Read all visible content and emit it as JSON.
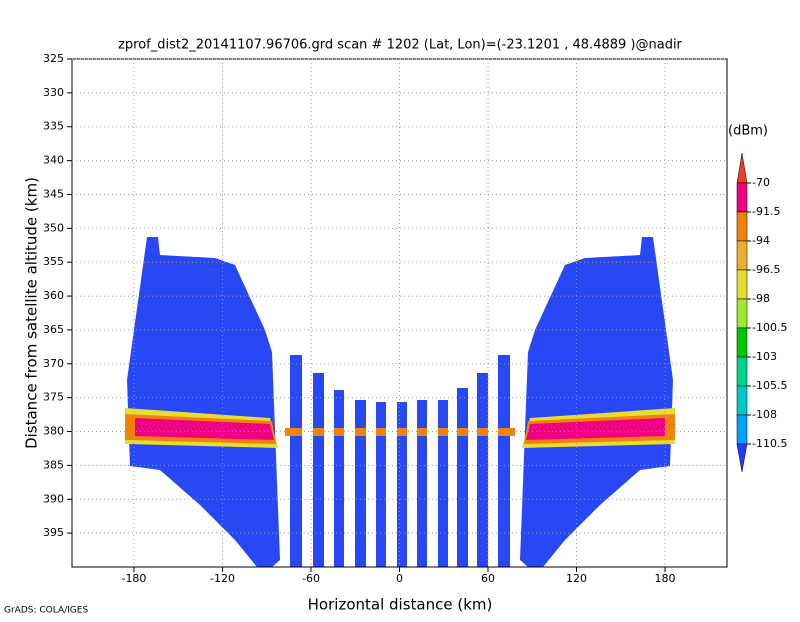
{
  "chart_data": {
    "type": "profile",
    "title": "zprof_dist2_20141107.96706.grd  scan # 1202  (Lat, Lon)=(-23.1201 , 48.4889 )@nadir",
    "x_label": "Horizontal distance (km)",
    "y_label": "Distance from satellite altitude (km)",
    "xlim": [
      -222,
      222
    ],
    "xticks": [
      -180,
      -120,
      -60,
      0,
      60,
      120,
      180
    ],
    "ylim": [
      325,
      400
    ],
    "yticks": [
      325,
      330,
      335,
      340,
      345,
      350,
      355,
      360,
      365,
      370,
      375,
      380,
      385,
      390,
      395
    ],
    "grid": true,
    "colorbar": {
      "unit": "(dBm)",
      "levels": [
        -70,
        -91.5,
        -94,
        -96.5,
        -98,
        -100.5,
        -103,
        -105.5,
        -108,
        -110.5
      ],
      "colors": [
        "#f03c28",
        "#f00082",
        "#f0820a",
        "#e6af2d",
        "#e6dc32",
        "#a0e632",
        "#00c800",
        "#00d28c",
        "#00c8c8",
        "#00a0ff",
        "#1e3cff"
      ]
    },
    "footer": "GrADS: COLA/IGES"
  }
}
